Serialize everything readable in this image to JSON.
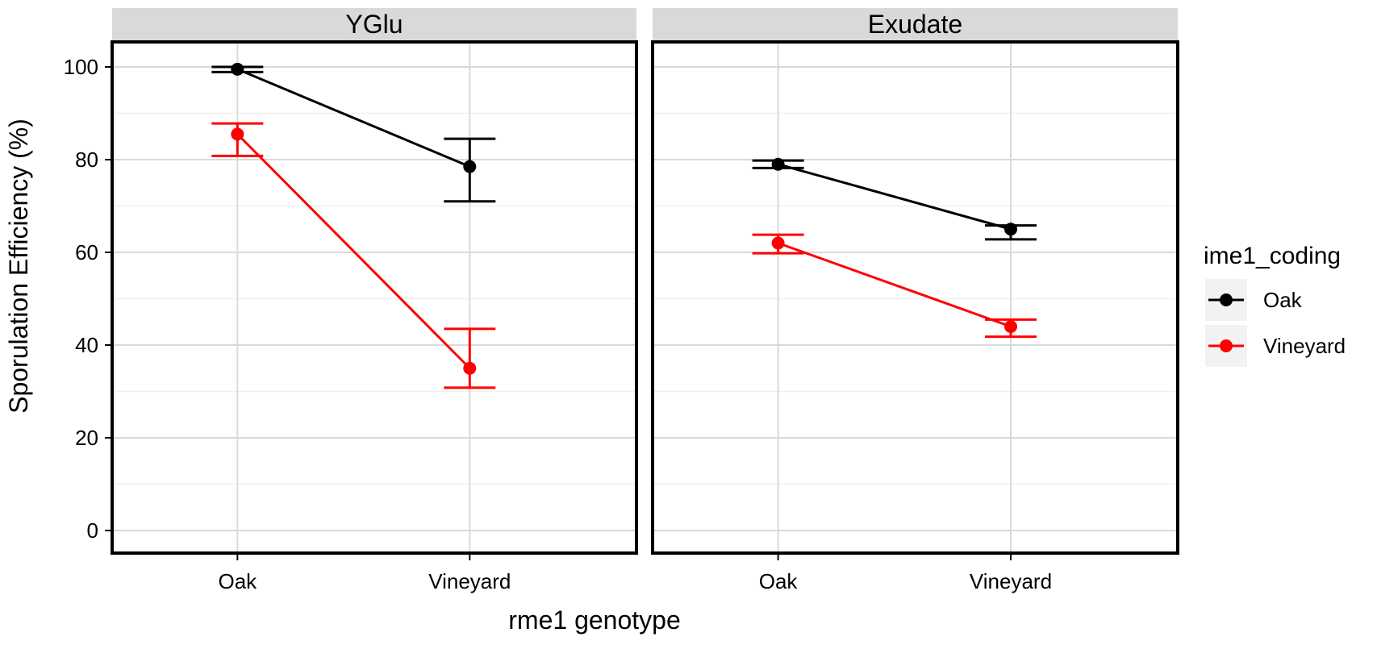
{
  "chart_data": {
    "type": "line",
    "facets": [
      "YGlu",
      "Exudate"
    ],
    "categories": [
      "Oak",
      "Vineyard"
    ],
    "xlabel": "rme1 genotype",
    "ylabel": "Sporulation Efficiency (%)",
    "ylim": [
      0,
      100
    ],
    "y_ticks": [
      "0",
      "20",
      "40",
      "60",
      "80",
      "100"
    ],
    "grid": true,
    "legend": {
      "title": "ime1_coding",
      "position": "right"
    },
    "series": [
      {
        "name": "Oak",
        "color": "#000000",
        "facet_values": {
          "YGlu": [
            {
              "x": "Oak",
              "y": 99.5,
              "lo": 98.9,
              "hi": 100.0
            },
            {
              "x": "Vineyard",
              "y": 78.5,
              "lo": 71.0,
              "hi": 84.5
            }
          ],
          "Exudate": [
            {
              "x": "Oak",
              "y": 79.0,
              "lo": 78.2,
              "hi": 79.8
            },
            {
              "x": "Vineyard",
              "y": 65.0,
              "lo": 62.8,
              "hi": 65.8
            }
          ]
        }
      },
      {
        "name": "Vineyard",
        "color": "#FF0000",
        "facet_values": {
          "YGlu": [
            {
              "x": "Oak",
              "y": 85.5,
              "lo": 80.8,
              "hi": 87.8
            },
            {
              "x": "Vineyard",
              "y": 35.0,
              "lo": 30.8,
              "hi": 43.5
            }
          ],
          "Exudate": [
            {
              "x": "Oak",
              "y": 62.0,
              "lo": 59.8,
              "hi": 63.8
            },
            {
              "x": "Vineyard",
              "y": 44.0,
              "lo": 41.8,
              "hi": 45.5
            }
          ]
        }
      }
    ]
  }
}
